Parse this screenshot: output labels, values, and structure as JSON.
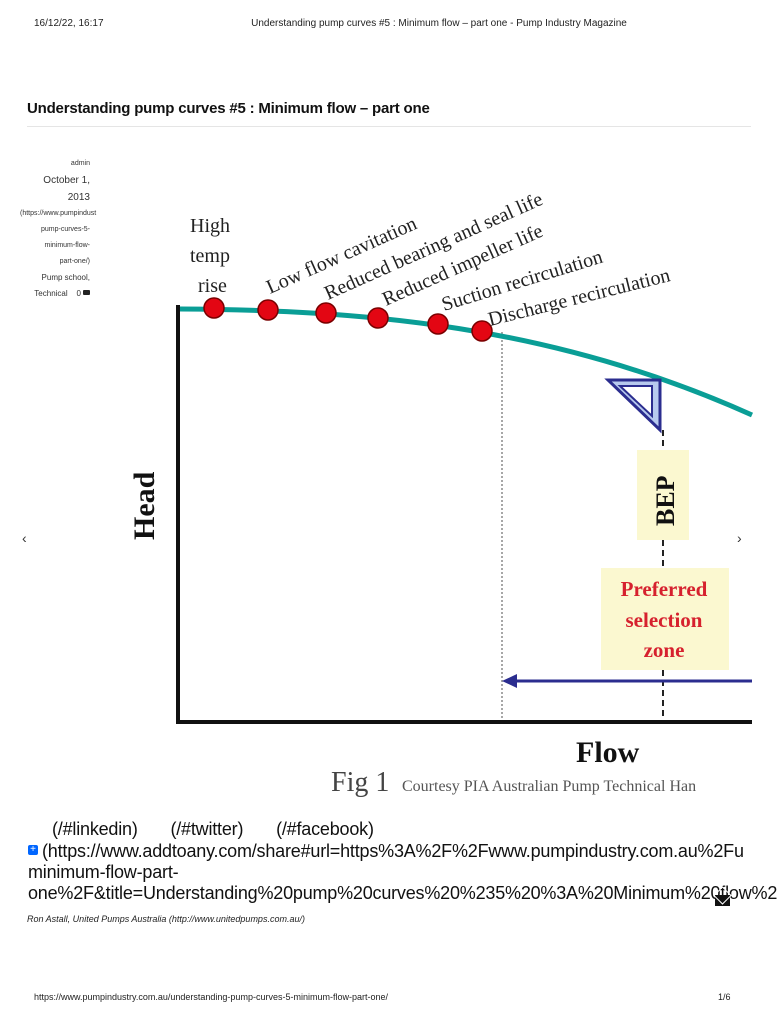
{
  "print_header": {
    "timestamp": "16/12/22, 16:17",
    "page_title": "Understanding pump curves #5 : Minimum flow – part one - Pump Industry Magazine"
  },
  "article": {
    "title": "Understanding pump curves #5 : Minimum flow – part one"
  },
  "meta": {
    "author": "admin",
    "date_line1": "October 1,",
    "date_line2": "2013",
    "permalink": [
      "(https://www.pumpindust",
      "pump-curves-5-",
      "minimum-flow-",
      "part-one/)"
    ],
    "category": "Pump school,",
    "category2": "Technical",
    "comment_count": "0"
  },
  "navigation": {
    "prev": "‹",
    "next": "›"
  },
  "figure": {
    "y_axis_label": "Head",
    "x_axis_label": "Flow",
    "caption_main": "Fig 1",
    "caption_credit": "Courtesy PIA Australian Pump Technical Han",
    "high_temp": [
      "High",
      "temp",
      "rise"
    ],
    "effects": [
      "Low flow cavitation",
      "Reduced bearing and seal life",
      "Reduced impeller life",
      "Suction recirculation",
      "Discharge recirculation"
    ],
    "bep_label": "BEP",
    "preferred_zone": [
      "Preferred",
      "selection",
      "zone"
    ],
    "colors": {
      "curve": "#0a9e96",
      "marker_fill": "#e30613",
      "marker_stroke": "#7a0000",
      "preferred_text": "#d6212e",
      "zone_bg": "#fbf8d0",
      "arrow": "#2b2d8f"
    }
  },
  "share": {
    "linkedin": "(/#linkedin)",
    "twitter": "(/#twitter)",
    "facebook": "(/#facebook)",
    "addtoany_icon": "+",
    "addtoany_line1": "(https://www.addtoany.com/share#url=https%3A%2F%2Fwww.pumpindustry.com.au%2Fu",
    "addtoany_line2": "minimum-flow-part-",
    "addtoany_line3": "one%2F&title=Understanding%20pump%20curves%20%235%20%3A%20Minimum%20flow%2"
  },
  "author_credit": "Ron Astall, United Pumps Australia (http://www.unitedpumps.com.au/)",
  "print_footer": {
    "url": "https://www.pumpindustry.com.au/understanding-pump-curves-5-minimum-flow-part-one/",
    "page": "1/6"
  }
}
